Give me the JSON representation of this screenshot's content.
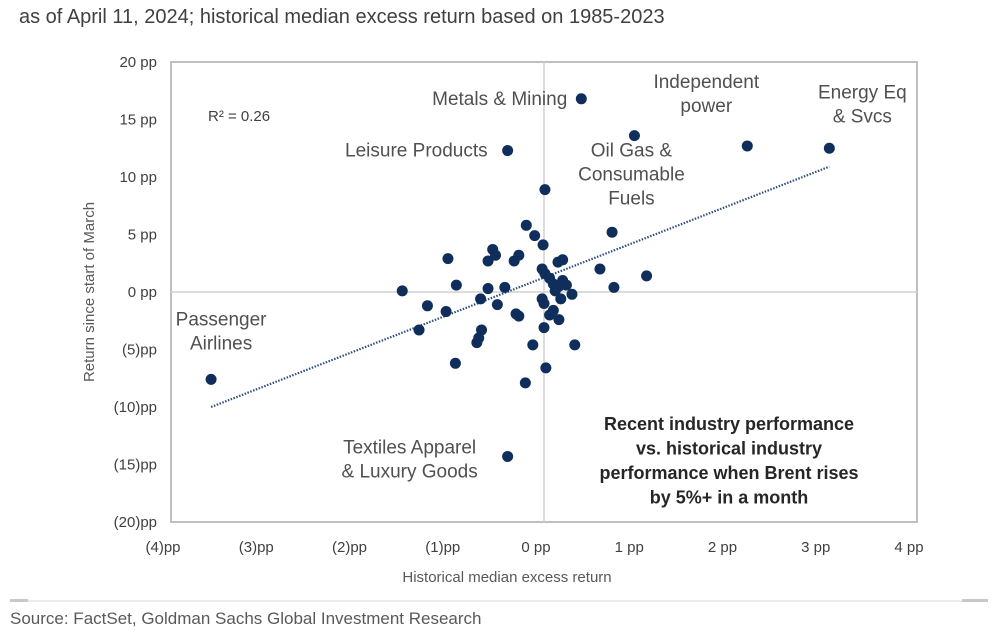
{
  "header": {
    "subtitle": "as of April 11, 2024; historical median excess return based on 1985-2023"
  },
  "footer": {
    "source": "Source: FactSet, Goldman Sachs Global Investment Research"
  },
  "colors": {
    "point": "#0f2e5c",
    "trendline": "#2f4f7f",
    "axis": "#bfbfbf",
    "text": "#404040"
  },
  "chart_data": {
    "type": "scatter",
    "title": "Recent industry performance vs. historical industry performance when Brent rises by 5%+ in a month",
    "title_lines": [
      "Recent industry performance",
      "vs. historical industry",
      "performance when Brent rises",
      "by 5%+ in a month"
    ],
    "xlabel": "Historical median excess return",
    "ylabel": "Return since start of March",
    "xlim": [
      -4,
      4
    ],
    "ylim": [
      -20,
      20
    ],
    "x_ticks": [
      -4,
      -3,
      -2,
      -1,
      0,
      1,
      2,
      3,
      4
    ],
    "x_tick_labels": [
      "(4)pp",
      "(3)pp",
      "(2)pp",
      "(1)pp",
      "0 pp",
      "1 pp",
      "2 pp",
      "3 pp",
      "4 pp"
    ],
    "y_ticks": [
      20,
      15,
      10,
      5,
      0,
      -5,
      -10,
      -15,
      -20
    ],
    "y_tick_labels": [
      "20 pp",
      "15 pp",
      "10 pp",
      "5 pp",
      "0 pp",
      "(5)pp",
      "(10)pp",
      "(15)pp",
      "(20)pp"
    ],
    "grid": false,
    "annotation_r2": "R² = 0.26",
    "trendline": {
      "x": [
        -3.57,
        3.06
      ],
      "y": [
        -10.0,
        10.9
      ],
      "style": "dotted"
    },
    "labeled_points": [
      {
        "label_lines": [
          "Energy Eq",
          "& Svcs"
        ],
        "x": 3.06,
        "y": 12.5
      },
      {
        "label_lines": [
          "Independent",
          "power"
        ],
        "x": 2.18,
        "y": 12.7
      },
      {
        "label_lines": [
          "Oil Gas &",
          "Consumable",
          "Fuels"
        ],
        "x": 0.97,
        "y": 13.6
      },
      {
        "label_lines": [
          "Metals & Mining"
        ],
        "x": 0.4,
        "y": 16.8
      },
      {
        "label_lines": [
          "Leisure Products"
        ],
        "x": -0.39,
        "y": 12.3
      },
      {
        "label_lines": [
          "Textiles Apparel",
          "& Luxury Goods"
        ],
        "x": -0.39,
        "y": -14.3
      },
      {
        "label_lines": [
          "Passenger",
          "Airlines"
        ],
        "x": -3.57,
        "y": -7.6
      }
    ],
    "points": [
      [
        0.01,
        8.9
      ],
      [
        0.73,
        5.2
      ],
      [
        -0.19,
        5.8
      ],
      [
        -0.1,
        4.9
      ],
      [
        -0.01,
        4.1
      ],
      [
        1.1,
        1.4
      ],
      [
        0.75,
        0.4
      ],
      [
        0.6,
        2.0
      ],
      [
        0.15,
        2.6
      ],
      [
        0.2,
        2.8
      ],
      [
        -0.02,
        2.0
      ],
      [
        0.01,
        1.6
      ],
      [
        0.06,
        1.2
      ],
      [
        0.1,
        0.7
      ],
      [
        0.16,
        0.5
      ],
      [
        0.2,
        1.0
      ],
      [
        0.24,
        0.6
      ],
      [
        0.3,
        -0.2
      ],
      [
        0.12,
        0.1
      ],
      [
        -0.02,
        -0.6
      ],
      [
        0.0,
        -1.0
      ],
      [
        0.18,
        -0.6
      ],
      [
        0.1,
        -1.6
      ],
      [
        0.16,
        -2.4
      ],
      [
        0.06,
        -2.0
      ],
      [
        0.0,
        -3.1
      ],
      [
        0.33,
        -4.6
      ],
      [
        -0.12,
        -4.6
      ],
      [
        0.02,
        -6.6
      ],
      [
        -0.2,
        -7.9
      ],
      [
        -0.55,
        3.7
      ],
      [
        -0.52,
        3.2
      ],
      [
        -0.6,
        2.7
      ],
      [
        -0.32,
        2.7
      ],
      [
        -0.27,
        3.2
      ],
      [
        -1.03,
        2.9
      ],
      [
        -0.94,
        0.6
      ],
      [
        -0.6,
        0.3
      ],
      [
        -0.42,
        0.4
      ],
      [
        -0.68,
        -0.6
      ],
      [
        -0.5,
        -1.1
      ],
      [
        -0.3,
        -1.9
      ],
      [
        -0.27,
        -2.1
      ],
      [
        -1.52,
        0.1
      ],
      [
        -1.25,
        -1.2
      ],
      [
        -1.05,
        -1.7
      ],
      [
        -1.34,
        -3.3
      ],
      [
        -0.67,
        -3.3
      ],
      [
        -0.7,
        -4.0
      ],
      [
        -0.72,
        -4.4
      ],
      [
        -0.95,
        -6.2
      ]
    ]
  }
}
